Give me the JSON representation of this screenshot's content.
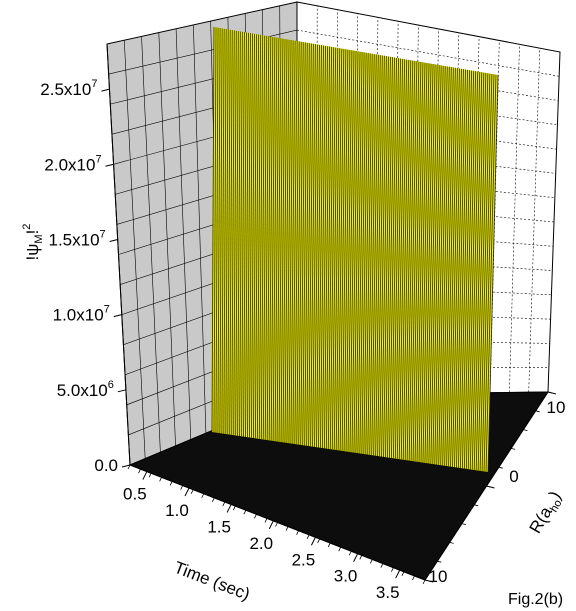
{
  "chart_data": {
    "type": "surface3d",
    "z_axis": {
      "ticks": [
        {
          "value": 0,
          "mant": "0.0",
          "exp": ""
        },
        {
          "value": 5000000,
          "mant": "5.0x10",
          "exp": "6"
        },
        {
          "value": 10000000,
          "mant": "1.0x10",
          "exp": "7"
        },
        {
          "value": 15000000,
          "mant": "1.5x10",
          "exp": "7"
        },
        {
          "value": 20000000,
          "mant": "2.0x10",
          "exp": "7"
        },
        {
          "value": 25000000,
          "mant": "2.5x10",
          "exp": "7"
        }
      ],
      "range": [
        0,
        28000000
      ]
    },
    "x_axis": {
      "label": "Time (sec)",
      "ticks": [
        "0.5",
        "1.0",
        "1.5",
        "2.0",
        "2.5",
        "3.0",
        "3.5"
      ],
      "range": [
        0.3,
        3.8
      ]
    },
    "y_axis": {
      "ticks": [
        "-10",
        "0",
        "10"
      ],
      "range": [
        -10,
        10
      ]
    },
    "surface": {
      "description_values": "thin wall at R = 0 across all time, peak near 2.8e7, zero elsewhere",
      "peak_value": 28000000,
      "wall_r": 0,
      "color": "#f2f200",
      "line_color": "#1a1a00",
      "floor_color": "#0d0d0d"
    },
    "grid": true
  },
  "labels": {
    "zlabel_pre": "!ψ",
    "zlabel_sub": "M",
    "zlabel_post": "!",
    "zlabel_sup": "2",
    "ylabel_pre": "R(a",
    "ylabel_sub": "ho",
    "ylabel_post": ")",
    "caption": "Fig.2(b)"
  }
}
